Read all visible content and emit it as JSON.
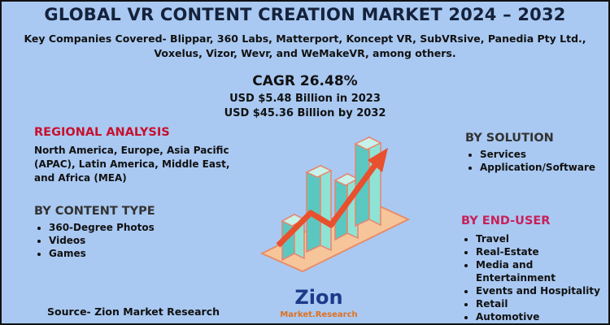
{
  "header": {
    "title": "GLOBAL VR CONTENT CREATION MARKET 2024 – 2032",
    "subtitle": "Key Companies Covered- Blippar, 360 Labs, Matterport, Koncept VR, SubVRsive, Panedia Pty Ltd., Voxelus, Vizor, Wevr, and WeMakeVR, among others."
  },
  "highlights": {
    "cagr": "CAGR 26.48%",
    "value_2023": "USD $5.48 Billion in 2023",
    "value_2032": "USD $45.36 Billion by 2032"
  },
  "regional_analysis": {
    "heading": "REGIONAL ANALYSIS",
    "text": "North America, Europe, Asia Pacific (APAC), Latin America, Middle East, and Africa (MEA)"
  },
  "content_type": {
    "heading": "BY CONTENT TYPE",
    "items": [
      "360-Degree Photos",
      "Videos",
      "Games"
    ]
  },
  "solution": {
    "heading": "BY SOLUTION",
    "items": [
      "Services",
      "Application/Software"
    ]
  },
  "end_user": {
    "heading": "BY END-USER",
    "items": [
      "Travel",
      "Real-Estate",
      "Media and Entertainment",
      "Events and Hospitality",
      "Retail",
      "Automotive"
    ]
  },
  "source": "Source- Zion Market Research",
  "logo": {
    "name": "Zion",
    "tagline": "Market.Research"
  }
}
